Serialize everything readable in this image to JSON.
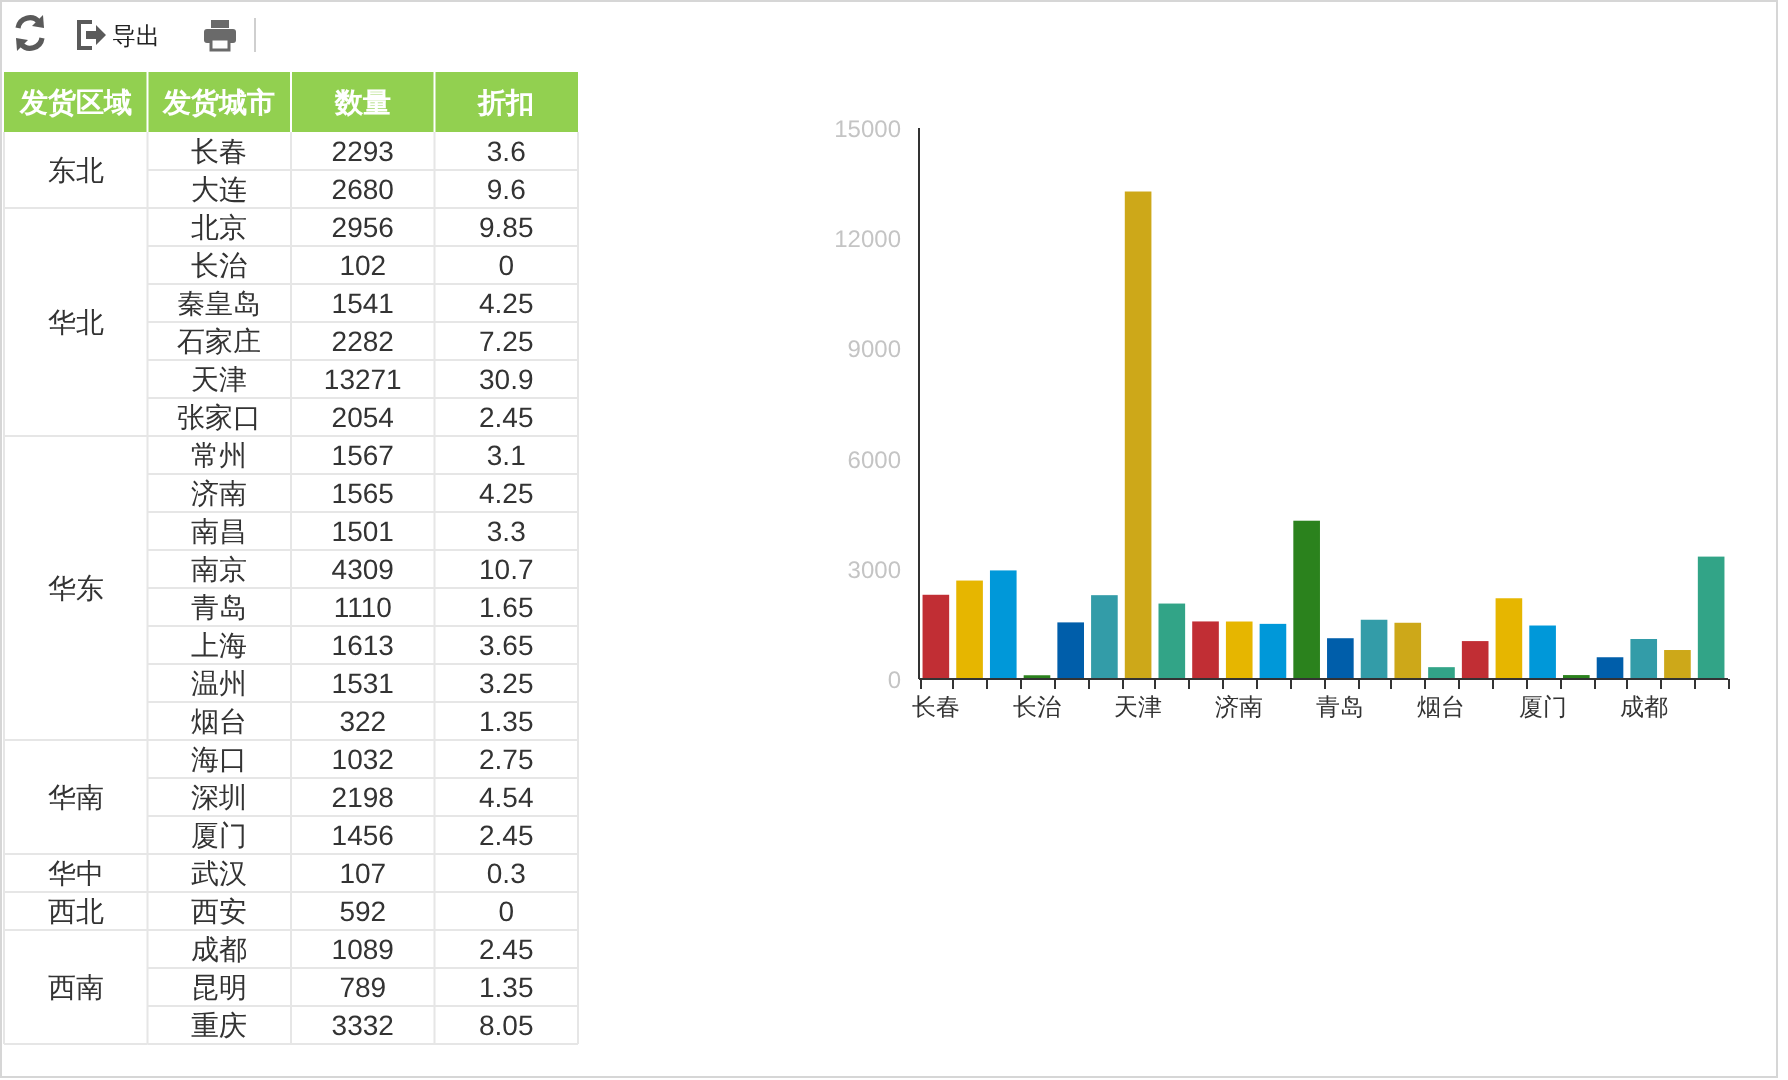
{
  "chart_data": [
    {
      "type": "other",
      "annotations": [
        "导出"
      ],
      "ylabel": "发货区域",
      "xlabel": "发货城市",
      "y_categories": [
        "东北",
        null,
        "华北",
        null,
        null,
        null,
        null,
        null,
        "华东",
        null,
        null,
        null,
        null,
        null,
        null,
        null,
        "华南",
        null,
        null,
        "华中",
        "西北",
        "西南",
        null,
        null
      ],
      "categories": [
        "长春",
        "大连",
        "北京",
        "长治",
        "秦皇岛",
        "石家庄",
        "天津",
        "张家口",
        "常州",
        "济南",
        "南昌",
        "南京",
        "青岛",
        "上海",
        "温州",
        "烟台",
        "海口",
        "深圳",
        "厦门",
        "武汉",
        "西安",
        "成都",
        "昆明",
        "重庆"
      ],
      "series": [
        {
          "name": "数量",
          "values": [
            2293,
            2680,
            2956,
            102,
            1541,
            2282,
            13271,
            2054,
            1567,
            1565,
            1501,
            4309,
            1110,
            1613,
            1531,
            322,
            1032,
            2198,
            1456,
            107,
            592,
            1089,
            789,
            3332
          ]
        },
        {
          "name": "折扣",
          "values": [
            3.6,
            9.6,
            9.85,
            0,
            4.25,
            7.25,
            30.9,
            2.45,
            3.1,
            4.25,
            3.3,
            10.7,
            1.65,
            3.65,
            3.25,
            1.35,
            2.75,
            4.54,
            2.45,
            0.3,
            0,
            2.45,
            1.35,
            8.05
          ]
        }
      ],
      "data_labels": true
    },
    {
      "type": "bar",
      "categories": [
        "长春",
        null,
        null,
        "长治",
        null,
        null,
        "天津",
        null,
        null,
        "济南",
        null,
        null,
        "青岛",
        null,
        null,
        "烟台",
        null,
        null,
        "厦门",
        null,
        null,
        "成都",
        null,
        null
      ],
      "values": [
        2293,
        2680,
        2956,
        102,
        1541,
        2282,
        13271,
        2054,
        1567,
        1565,
        1501,
        4309,
        1110,
        1613,
        1531,
        322,
        1032,
        2198,
        1456,
        107,
        592,
        1089,
        789,
        3332
      ],
      "colors": [
        "#c12e34",
        "#e6b600",
        "#0098d9",
        "#2b821d",
        "#005eaa",
        "#339ca8",
        "#cda819",
        "#32a487",
        "#c12e34",
        "#e6b600",
        "#0098d9",
        "#2b821d",
        "#005eaa",
        "#339ca8",
        "#cda819",
        "#32a487",
        "#c12e34",
        "#e6b600",
        "#0098d9",
        "#2b821d",
        "#005eaa",
        "#339ca8",
        "#cda819",
        "#32a487"
      ],
      "ylim": [
        0,
        15000
      ],
      "yticks": [
        0,
        3000,
        6000,
        9000,
        12000,
        15000
      ]
    }
  ]
}
